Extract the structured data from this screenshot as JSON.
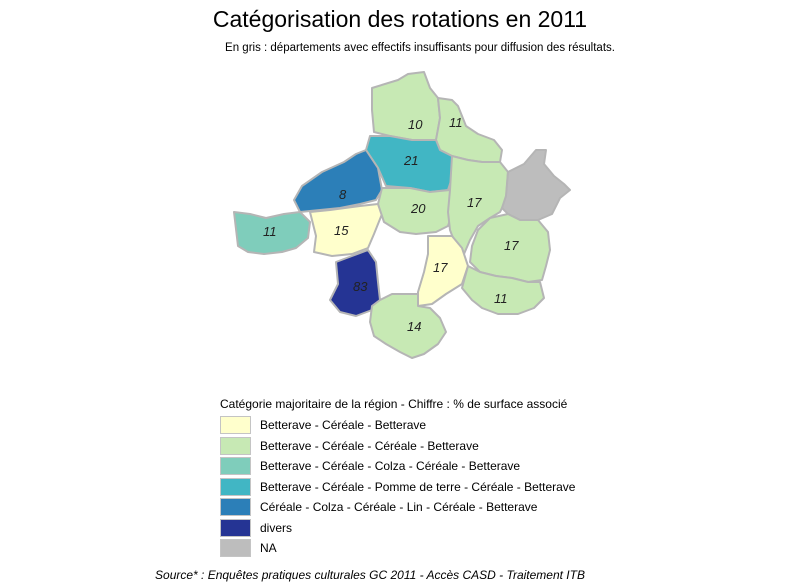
{
  "title": "Catégorisation des rotations en 2011",
  "subtitle": "En gris : départements avec effectifs insuffisants pour diffusion des résultats.",
  "legend": {
    "title": "Catégorie majoritaire de la région - Chiffre : % de surface associé",
    "items": [
      {
        "label": "Betterave - Céréale - Betterave",
        "color": "#ffffcc"
      },
      {
        "label": "Betterave - Céréale - Céréale - Betterave",
        "color": "#c7e9b4"
      },
      {
        "label": "Betterave - Céréale - Colza - Céréale - Betterave",
        "color": "#7fcdbb"
      },
      {
        "label": "Betterave - Céréale - Pomme de terre - Céréale - Betterave",
        "color": "#41b6c4"
      },
      {
        "label": "Céréale - Colza - Céréale - Lin - Céréale - Betterave",
        "color": "#2c7fb8"
      },
      {
        "label": "divers",
        "color": "#253494"
      },
      {
        "label": "NA",
        "color": "#bdbdbd"
      }
    ]
  },
  "regions": [
    {
      "id": "r1",
      "label": "10",
      "category": 1
    },
    {
      "id": "r2",
      "label": "11",
      "category": 1
    },
    {
      "id": "r3",
      "label": "21",
      "category": 3
    },
    {
      "id": "r4",
      "label": "8",
      "category": 4
    },
    {
      "id": "r5",
      "label": "11",
      "category": 2
    },
    {
      "id": "r6",
      "label": "15",
      "category": 0
    },
    {
      "id": "r7",
      "label": "20",
      "category": 1
    },
    {
      "id": "r8",
      "label": "17",
      "category": 1
    },
    {
      "id": "r9",
      "label": "",
      "category": 6
    },
    {
      "id": "r10",
      "label": "17",
      "category": 1
    },
    {
      "id": "r11",
      "label": "17",
      "category": 0
    },
    {
      "id": "r12",
      "label": "83",
      "category": 5
    },
    {
      "id": "r13",
      "label": "11",
      "category": 1
    },
    {
      "id": "r14",
      "label": "14",
      "category": 1
    }
  ],
  "source": "Source* : Enquêtes pratiques culturales GC 2011 - Accès CASD - Traitement ITB"
}
